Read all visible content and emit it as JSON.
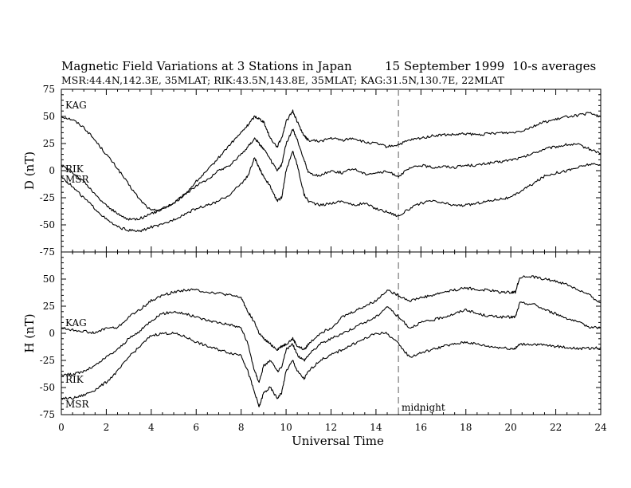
{
  "chart_data": {
    "type": "line",
    "title": "Magnetic Field Variations at 3 Stations in Japan",
    "date": "15 September 1999",
    "note": "10-s averages",
    "subtitle": "MSR:44.4N,142.3E, 35MLAT;   RIK:43.5N,143.8E, 35MLAT;   KAG:31.5N,130.7E, 22MLAT",
    "xlabel": "Universal Time",
    "xlim": [
      0,
      24
    ],
    "xticks": [
      "0",
      "2",
      "4",
      "6",
      "8",
      "10",
      "12",
      "14",
      "16",
      "18",
      "20",
      "22",
      "24"
    ],
    "midnight_line": {
      "x": 15,
      "label": "midnight"
    },
    "panels": [
      {
        "ylabel": "D (nT)",
        "ylim": [
          -75,
          75
        ],
        "yticks": [
          "75",
          "50",
          "25",
          "0",
          "-25",
          "-50",
          "-75"
        ],
        "series": [
          {
            "name": "KAG",
            "x": [
              0,
              0.5,
              1,
              1.5,
              2,
              2.5,
              3,
              3.5,
              4,
              4.5,
              5,
              5.5,
              6,
              6.5,
              7,
              7.5,
              8,
              8.3,
              8.6,
              8.8,
              9,
              9.3,
              9.6,
              9.8,
              10,
              10.3,
              10.5,
              10.8,
              11,
              11.5,
              12,
              12.5,
              13,
              13.5,
              14,
              14.5,
              15,
              15.5,
              16,
              16.5,
              17,
              17.5,
              18,
              18.5,
              19,
              19.5,
              20,
              20.5,
              21,
              21.5,
              22,
              22.5,
              23,
              23.5,
              24
            ],
            "values": [
              50,
              47,
              40,
              28,
              15,
              2,
              -13,
              -27,
              -37,
              -35,
              -30,
              -22,
              -10,
              0,
              12,
              24,
              35,
              42,
              50,
              48,
              45,
              30,
              22,
              30,
              45,
              55,
              45,
              32,
              28,
              27,
              30,
              28,
              30,
              26,
              25,
              22,
              24,
              28,
              30,
              32,
              33,
              33,
              34,
              33,
              34,
              35,
              35,
              37,
              41,
              45,
              47,
              50,
              51,
              53,
              50
            ]
          },
          {
            "name": "RIK",
            "x": [
              0,
              0.5,
              1,
              1.5,
              2,
              2.5,
              3,
              3.5,
              4,
              4.5,
              5,
              5.5,
              6,
              6.5,
              7,
              7.5,
              8,
              8.3,
              8.6,
              8.8,
              9,
              9.3,
              9.6,
              9.8,
              10,
              10.3,
              10.5,
              10.8,
              11,
              11.5,
              12,
              12.5,
              13,
              13.5,
              14,
              14.5,
              15,
              15.5,
              16,
              16.5,
              17,
              17.5,
              18,
              18.5,
              19,
              19.5,
              20,
              20.5,
              21,
              21.5,
              22,
              22.5,
              23,
              23.5,
              24
            ],
            "values": [
              5,
              -2,
              -10,
              -22,
              -32,
              -40,
              -45,
              -44,
              -40,
              -35,
              -30,
              -22,
              -14,
              -8,
              0,
              5,
              15,
              22,
              30,
              25,
              20,
              10,
              0,
              5,
              25,
              38,
              28,
              10,
              -2,
              -5,
              0,
              -2,
              2,
              -3,
              -2,
              -1,
              -5,
              2,
              5,
              3,
              4,
              3,
              5,
              5,
              7,
              8,
              10,
              12,
              16,
              20,
              22,
              24,
              24,
              20,
              16
            ]
          },
          {
            "name": "MSR",
            "x": [
              0,
              0.5,
              1,
              1.5,
              2,
              2.5,
              3,
              3.5,
              4,
              4.5,
              5,
              5.5,
              6,
              6.5,
              7,
              7.5,
              8,
              8.3,
              8.6,
              8.8,
              9,
              9.3,
              9.6,
              9.8,
              10,
              10.3,
              10.5,
              10.8,
              11,
              11.5,
              12,
              12.5,
              13,
              13.5,
              14,
              14.5,
              15,
              15.5,
              16,
              16.5,
              17,
              17.5,
              18,
              18.5,
              19,
              19.5,
              20,
              20.5,
              21,
              21.5,
              22,
              22.5,
              23,
              23.5,
              24
            ],
            "values": [
              -5,
              -15,
              -25,
              -35,
              -45,
              -52,
              -55,
              -56,
              -52,
              -50,
              -45,
              -40,
              -35,
              -32,
              -28,
              -22,
              -12,
              -5,
              12,
              2,
              -5,
              -15,
              -28,
              -25,
              0,
              18,
              5,
              -22,
              -28,
              -32,
              -30,
              -28,
              -32,
              -30,
              -35,
              -38,
              -42,
              -35,
              -30,
              -28,
              -30,
              -32,
              -32,
              -30,
              -28,
              -26,
              -25,
              -18,
              -12,
              -5,
              -2,
              0,
              3,
              6,
              5
            ]
          }
        ]
      },
      {
        "ylabel": "H (nT)",
        "ylim": [
          -75,
          75
        ],
        "yticks": [
          "",
          "50",
          "25",
          "0",
          "-25",
          "-50",
          "-75"
        ],
        "series": [
          {
            "name": "KAG",
            "x": [
              0,
              0.5,
              1,
              1.5,
              2,
              2.5,
              3,
              3.5,
              4,
              4.5,
              5,
              5.5,
              6,
              6.5,
              7,
              7.5,
              8,
              8.3,
              8.6,
              8.8,
              9,
              9.3,
              9.6,
              9.8,
              10,
              10.3,
              10.5,
              10.8,
              11,
              11.5,
              12,
              12.5,
              13,
              13.5,
              14,
              14.5,
              15,
              15.5,
              16,
              16.5,
              17,
              17.5,
              18,
              18.5,
              19,
              19.5,
              20,
              20.2,
              20.4,
              21,
              21.5,
              22,
              22.5,
              23,
              23.5,
              24
            ],
            "values": [
              5,
              3,
              2,
              0,
              5,
              5,
              15,
              22,
              30,
              35,
              38,
              40,
              40,
              38,
              37,
              35,
              33,
              20,
              10,
              0,
              -5,
              -10,
              -15,
              -12,
              -10,
              -5,
              -12,
              -15,
              -10,
              0,
              5,
              15,
              20,
              25,
              30,
              40,
              35,
              30,
              33,
              35,
              38,
              40,
              42,
              40,
              40,
              38,
              38,
              38,
              52,
              52,
              50,
              48,
              45,
              40,
              35,
              28
            ]
          },
          {
            "name": "RIK",
            "x": [
              0,
              0.5,
              1,
              1.5,
              2,
              2.5,
              3,
              3.5,
              4,
              4.5,
              5,
              5.5,
              6,
              6.5,
              7,
              7.5,
              8,
              8.3,
              8.6,
              8.8,
              9,
              9.3,
              9.6,
              9.8,
              10,
              10.3,
              10.5,
              10.8,
              11,
              11.5,
              12,
              12.5,
              13,
              13.5,
              14,
              14.5,
              15,
              15.5,
              16,
              16.5,
              17,
              17.5,
              18,
              18.5,
              19,
              19.5,
              20,
              20.2,
              20.4,
              21,
              21.5,
              22,
              22.5,
              23,
              23.5,
              24
            ],
            "values": [
              -38,
              -38,
              -35,
              -30,
              -22,
              -15,
              -5,
              2,
              12,
              18,
              20,
              18,
              15,
              12,
              10,
              8,
              5,
              -10,
              -35,
              -45,
              -30,
              -25,
              -35,
              -32,
              -15,
              -10,
              -20,
              -25,
              -20,
              -10,
              -5,
              0,
              5,
              10,
              15,
              25,
              15,
              5,
              10,
              12,
              15,
              18,
              22,
              18,
              16,
              15,
              15,
              15,
              28,
              27,
              22,
              18,
              14,
              10,
              6,
              5
            ]
          },
          {
            "name": "MSR",
            "x": [
              0,
              0.5,
              1,
              1.5,
              2,
              2.5,
              3,
              3.5,
              4,
              4.5,
              5,
              5.5,
              6,
              6.5,
              7,
              7.5,
              8,
              8.3,
              8.6,
              8.8,
              9,
              9.3,
              9.6,
              9.8,
              10,
              10.3,
              10.5,
              10.8,
              11,
              11.5,
              12,
              12.5,
              13,
              13.5,
              14,
              14.5,
              15,
              15.5,
              16,
              16.5,
              17,
              17.5,
              18,
              18.5,
              19,
              19.5,
              20,
              20.2,
              20.4,
              21,
              21.5,
              22,
              22.5,
              23,
              23.5,
              24
            ],
            "values": [
              -60,
              -60,
              -57,
              -52,
              -45,
              -35,
              -22,
              -12,
              -2,
              0,
              0,
              -3,
              -8,
              -12,
              -15,
              -18,
              -20,
              -35,
              -55,
              -68,
              -55,
              -50,
              -60,
              -55,
              -35,
              -25,
              -35,
              -42,
              -35,
              -25,
              -20,
              -15,
              -10,
              -5,
              0,
              0,
              -10,
              -22,
              -18,
              -15,
              -12,
              -10,
              -8,
              -10,
              -12,
              -13,
              -14,
              -14,
              -10,
              -10,
              -11,
              -12,
              -13,
              -14,
              -14,
              -13
            ]
          }
        ]
      }
    ]
  }
}
